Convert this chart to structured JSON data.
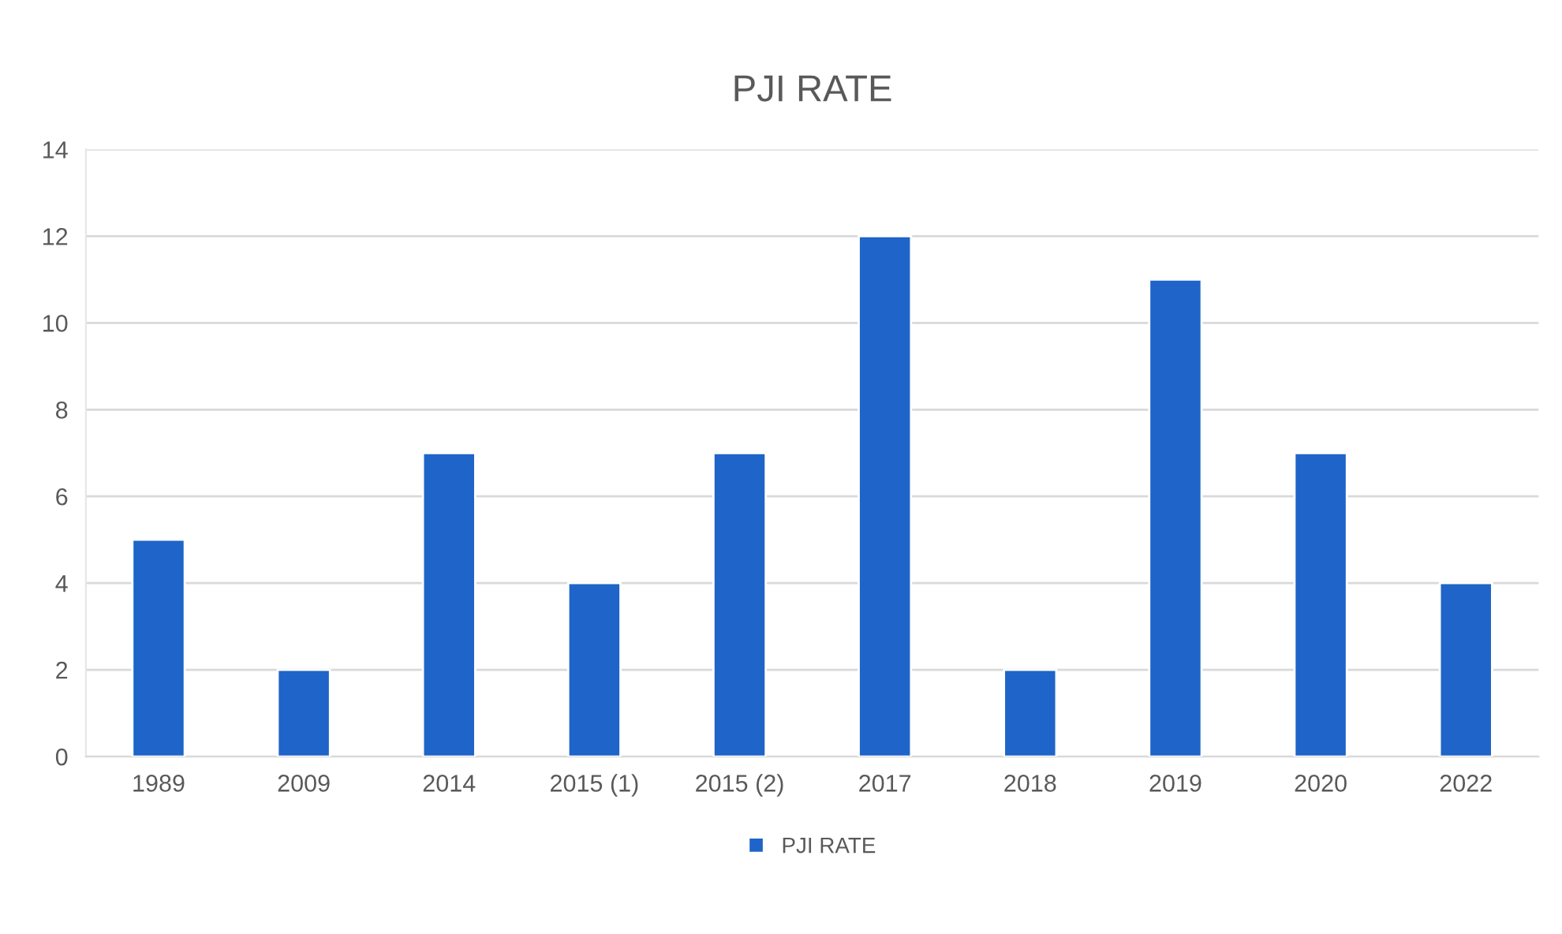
{
  "chart_data": {
    "type": "bar",
    "title": "PJI RATE",
    "categories": [
      "1989",
      "2009",
      "2014",
      "2015 (1)",
      "2015 (2)",
      "2017",
      "2018",
      "2019",
      "2020",
      "2022"
    ],
    "series": [
      {
        "name": "PJI RATE",
        "color": "#1f64c8",
        "values": [
          5,
          2,
          7,
          4,
          7,
          12,
          2,
          11,
          7,
          4
        ]
      }
    ],
    "ylim": [
      0,
      14
    ],
    "yticks": [
      0,
      2,
      4,
      6,
      8,
      10,
      12,
      14
    ],
    "grid": "y",
    "legend": "bottom"
  }
}
